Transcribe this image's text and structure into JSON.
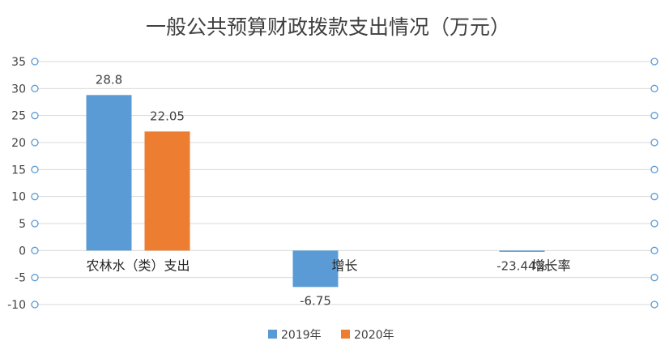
{
  "chart_data": {
    "type": "bar",
    "title": "一般公共预算财政拨款支出情况（万元）",
    "xlabel": "",
    "ylabel": "",
    "categories": [
      "农林水（类）支出",
      "增长",
      "增长率"
    ],
    "series": [
      {
        "name": "2019年",
        "color": "#5b9bd5",
        "values": [
          28.8,
          -6.75,
          -0.2344
        ]
      },
      {
        "name": "2020年",
        "color": "#ed7d31",
        "values": [
          22.05,
          null,
          null
        ]
      }
    ],
    "data_labels": [
      [
        "28.8",
        "-6.75",
        "-23.44%"
      ],
      [
        "22.05",
        "",
        ""
      ]
    ],
    "ylim": [
      -10,
      35
    ],
    "yticks": [
      -10,
      -5,
      0,
      5,
      10,
      15,
      20,
      25,
      30,
      35
    ],
    "grid": true,
    "legend_position": "bottom"
  }
}
